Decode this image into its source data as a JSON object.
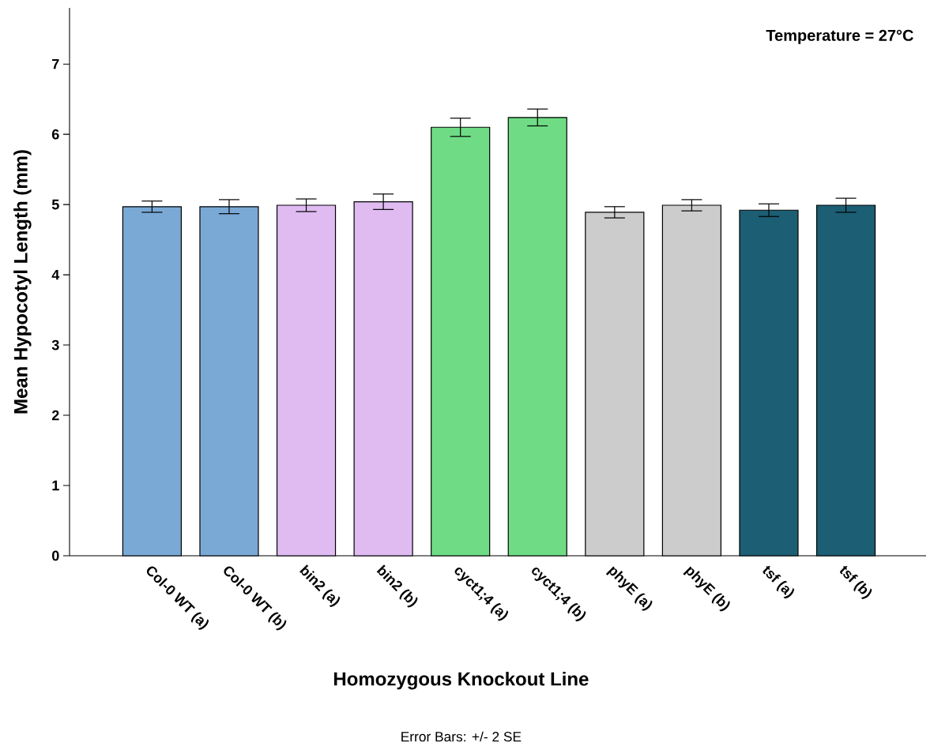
{
  "chart_data": {
    "type": "bar",
    "xlabel": "Homozygous Knockout Line",
    "ylabel": "Mean Hypocotyl Length (mm)",
    "categories": [
      "Col-0 WT (a)",
      "Col-0 WT (b)",
      "bin2 (a)",
      "bin2 (b)",
      "cyct1;4 (a)",
      "cyct1;4 (b)",
      "phyE (a)",
      "phyE (b)",
      "tsf (a)",
      "tsf (b)"
    ],
    "values": [
      4.97,
      4.97,
      4.99,
      5.04,
      6.1,
      6.24,
      4.89,
      4.99,
      4.92,
      4.99
    ],
    "errors": [
      0.08,
      0.1,
      0.09,
      0.11,
      0.13,
      0.12,
      0.08,
      0.08,
      0.09,
      0.1
    ],
    "colors": [
      "#7aa9d6",
      "#7aa9d6",
      "#dfbbf2",
      "#dfbbf2",
      "#6fdc85",
      "#6fdc85",
      "#cccccc",
      "#cccccc",
      "#1c5e74",
      "#1c5e74"
    ],
    "ylim": [
      0,
      7.8
    ],
    "yticks": [
      0,
      1,
      2,
      3,
      4,
      5,
      6,
      7
    ],
    "annotations": [
      "Temperature = 27°C",
      "Error Bars: +/- 2 SE"
    ]
  }
}
